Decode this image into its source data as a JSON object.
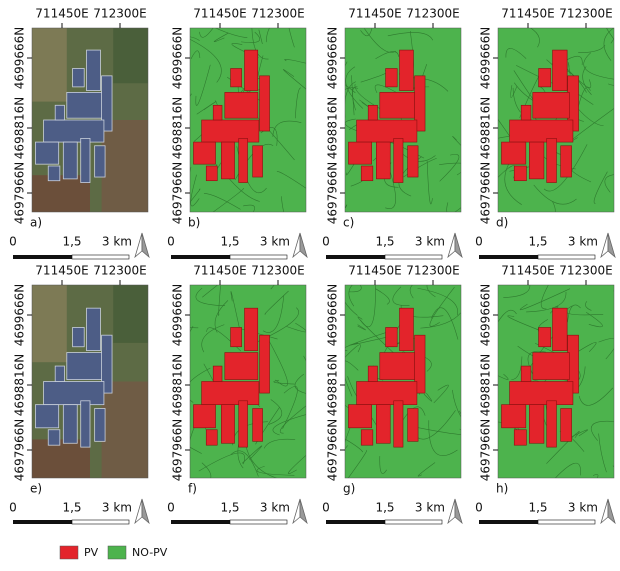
{
  "panels": [
    {
      "letter": "a)",
      "x_labels": [
        "711450E",
        "712300E"
      ],
      "y_labels": [
        "4699666N",
        "4698816N",
        "4697966N"
      ],
      "scale": [
        "0",
        "1,5",
        "3 km"
      ]
    },
    {
      "letter": "b)",
      "x_labels": [
        "711450E",
        "712300E"
      ],
      "y_labels": [
        "4699666N",
        "4698816N",
        "4697966N"
      ],
      "scale": [
        "0",
        "1,5",
        "3 km"
      ]
    },
    {
      "letter": "c)",
      "x_labels": [
        "711450E",
        "712300E"
      ],
      "y_labels": [
        "4699666N",
        "4698816N",
        "4697966N"
      ],
      "scale": [
        "0",
        "1,5",
        "3 km"
      ]
    },
    {
      "letter": "d)",
      "x_labels": [
        "711450E",
        "712300E"
      ],
      "y_labels": [
        "4699666N",
        "4698816N",
        "4697966N"
      ],
      "scale": [
        "0",
        "1,5",
        "3 km"
      ]
    },
    {
      "letter": "e)",
      "x_labels": [
        "711450E",
        "712300E"
      ],
      "y_labels": [
        "4699666N",
        "4698816N",
        "4697966N"
      ],
      "scale": [
        "0",
        "1,5",
        "3 km"
      ]
    },
    {
      "letter": "f)",
      "x_labels": [
        "711450E",
        "712300E"
      ],
      "y_labels": [
        "4699666N",
        "4698816N",
        "4697966N"
      ],
      "scale": [
        "0",
        "1,5",
        "3 km"
      ]
    },
    {
      "letter": "g)",
      "x_labels": [
        "711450E",
        "712300E"
      ],
      "y_labels": [
        "4699666N",
        "4698816N",
        "4697966N"
      ],
      "scale": [
        "0",
        "1,5",
        "3 km"
      ]
    },
    {
      "letter": "h)",
      "x_labels": [
        "711450E",
        "712300E"
      ],
      "y_labels": [
        "4699666N",
        "4698816N",
        "4697966N"
      ],
      "scale": [
        "0",
        "1,5",
        "3 km"
      ]
    }
  ],
  "legend": [
    {
      "label": "PV",
      "color": "#e3242b"
    },
    {
      "label": "NO-PV",
      "color": "#4db34d"
    }
  ]
}
